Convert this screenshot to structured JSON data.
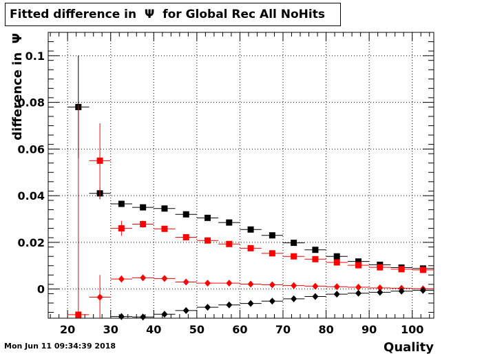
{
  "title": "Fitted difference in  Ψ  for Global Rec All NoHits",
  "footer_date": "Mon Jun 11 09:34:39 2018",
  "chart_data": {
    "type": "scatter",
    "xlabel": "Quality",
    "ylabel": "difference in  Ψ",
    "xlim": [
      15.5,
      105
    ],
    "ylim": [
      -0.0125,
      0.11
    ],
    "x_ticks": [
      20,
      30,
      40,
      50,
      60,
      70,
      80,
      90,
      100
    ],
    "y_ticks": [
      0,
      0.02,
      0.04,
      0.06,
      0.08,
      0.1
    ],
    "x_tick_labels": [
      "20",
      "30",
      "40",
      "50",
      "60",
      "70",
      "80",
      "90",
      "100"
    ],
    "y_tick_labels": [
      "0",
      "0.02",
      "0.04",
      "0.06",
      "0.08",
      "0.1"
    ],
    "grid": true,
    "bin_half_width": 2.5,
    "series": [
      {
        "color": "#000000",
        "marker": "square",
        "x": [
          22.5,
          27.5,
          32.5,
          37.5,
          42.5,
          47.5,
          52.5,
          57.5,
          62.5,
          67.5,
          72.5,
          77.5,
          82.5,
          87.5,
          92.5,
          97.5,
          102.5
        ],
        "y": [
          0.078,
          0.041,
          0.0365,
          0.035,
          0.0345,
          0.032,
          0.0305,
          0.0285,
          0.0255,
          0.023,
          0.0198,
          0.0168,
          0.014,
          0.0118,
          0.0104,
          0.0092,
          0.0088
        ],
        "yerr": [
          0.022,
          0.0025,
          0.0012,
          0.0009,
          0.0008,
          0.0007,
          0.0006,
          0.0006,
          0.0005,
          0.0005,
          0.0005,
          0.0005,
          0.0005,
          0.0004,
          0.0004,
          0.0004,
          0.0004
        ]
      },
      {
        "color": "#ff0000",
        "marker": "square",
        "x": [
          22.5,
          27.5,
          32.5,
          37.5,
          42.5,
          47.5,
          52.5,
          57.5,
          62.5,
          67.5,
          72.5,
          77.5,
          82.5,
          87.5,
          92.5,
          97.5,
          102.5
        ],
        "y": [
          -0.011,
          0.055,
          0.026,
          0.0278,
          0.0258,
          0.0222,
          0.0208,
          0.0193,
          0.0175,
          0.0153,
          0.014,
          0.0128,
          0.0114,
          0.0102,
          0.0093,
          0.0085,
          0.0082
        ],
        "yerr": [
          0.09,
          0.016,
          0.0032,
          0.0015,
          0.001,
          0.0008,
          0.0007,
          0.0006,
          0.0006,
          0.0005,
          0.0005,
          0.0005,
          0.0005,
          0.0004,
          0.0004,
          0.0004,
          0.0004
        ]
      },
      {
        "color": "#ff0000",
        "marker": "diamond",
        "x": [
          27.5,
          32.5,
          37.5,
          42.5,
          47.5,
          52.5,
          57.5,
          62.5,
          67.5,
          72.5,
          77.5,
          82.5,
          87.5,
          92.5,
          97.5,
          102.5
        ],
        "y": [
          -0.0035,
          0.0043,
          0.0048,
          0.0045,
          0.003,
          0.0025,
          0.0025,
          0.0021,
          0.0018,
          0.0015,
          0.0012,
          0.001,
          0.0008,
          0.0005,
          0.0003,
          0.0001
        ],
        "yerr": [
          0.0095,
          0.0015,
          0.0008,
          0.0006,
          0.0005,
          0.0004,
          0.0004,
          0.0004,
          0.0003,
          0.0003,
          0.0003,
          0.0003,
          0.0003,
          0.0002,
          0.0002,
          0.0002
        ]
      },
      {
        "color": "#000000",
        "marker": "diamond",
        "x": [
          32.5,
          37.5,
          42.5,
          47.5,
          52.5,
          57.5,
          62.5,
          67.5,
          72.5,
          77.5,
          82.5,
          87.5,
          92.5,
          97.5,
          102.5
        ],
        "y": [
          -0.0118,
          -0.012,
          -0.0108,
          -0.0092,
          -0.0078,
          -0.0068,
          -0.0062,
          -0.0052,
          -0.0042,
          -0.0032,
          -0.0022,
          -0.0018,
          -0.0014,
          -0.0009,
          -0.0006
        ],
        "yerr": [
          0.001,
          0.0008,
          0.0006,
          0.0005,
          0.0004,
          0.0004,
          0.0004,
          0.0003,
          0.0003,
          0.0003,
          0.0003,
          0.0003,
          0.0002,
          0.0002,
          0.0002
        ]
      }
    ]
  }
}
